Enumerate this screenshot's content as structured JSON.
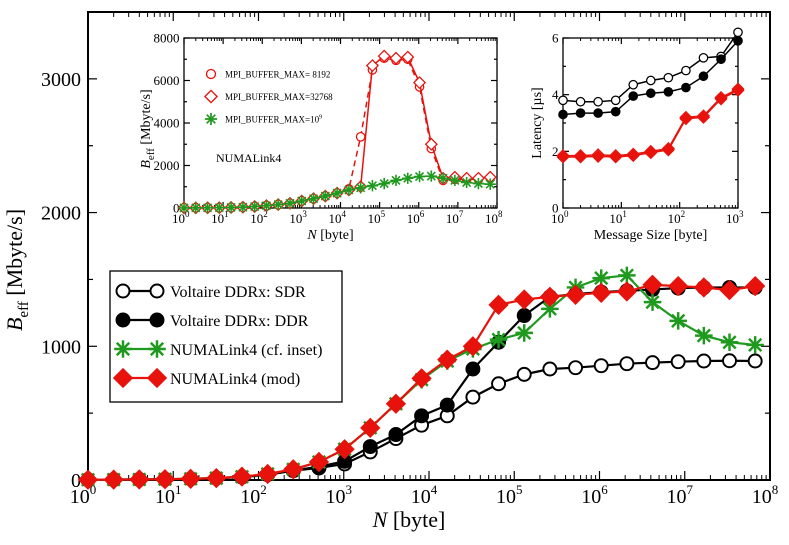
{
  "chart_data": [
    {
      "id": "main",
      "type": "line",
      "xscale": "log",
      "xlim_exp": [
        0,
        8
      ],
      "ylim": [
        0,
        3500
      ],
      "yticks": [
        0,
        1000,
        2000,
        3000
      ],
      "xlabel": "N",
      "xlabel_unit": "[byte]",
      "ylabel": "B",
      "ylabel_sub": "eff",
      "ylabel_unit": "[Mbyte/s]",
      "legend_position": "middle-left",
      "series": [
        {
          "name": "Voltaire DDRx: SDR",
          "color": "#000000",
          "marker": "circle-open",
          "x_exp": [
            0,
            0.301,
            0.602,
            0.903,
            1.204,
            1.505,
            1.806,
            2.107,
            2.408,
            2.709,
            3.01,
            3.311,
            3.612,
            3.913,
            4.214,
            4.515,
            4.816,
            5.117,
            5.418,
            5.719,
            6.02,
            6.321,
            6.622,
            6.923,
            7.224,
            7.525,
            7.826
          ],
          "y": [
            2,
            3,
            4,
            6,
            9,
            14,
            22,
            40,
            70,
            90,
            120,
            210,
            310,
            410,
            480,
            620,
            720,
            790,
            830,
            840,
            855,
            870,
            878,
            885,
            890,
            892,
            890
          ]
        },
        {
          "name": "Voltaire DDRx: DDR",
          "color": "#000000",
          "marker": "circle-filled",
          "x_exp": [
            0,
            0.301,
            0.602,
            0.903,
            1.204,
            1.505,
            1.806,
            2.107,
            2.408,
            2.709,
            3.01,
            3.311,
            3.612,
            3.913,
            4.214,
            4.515,
            4.816,
            5.117,
            5.418,
            5.719,
            6.02,
            6.321,
            6.622,
            6.923,
            7.224,
            7.525,
            7.826
          ],
          "y": [
            2,
            3,
            4,
            6,
            9,
            14,
            22,
            40,
            70,
            100,
            140,
            250,
            340,
            480,
            560,
            830,
            1030,
            1230,
            1370,
            1390,
            1405,
            1415,
            1425,
            1435,
            1440,
            1440,
            1440
          ]
        },
        {
          "name": "NUMALink4 (cf. inset)",
          "color": "#1f9a1f",
          "marker": "asterisk",
          "x_exp": [
            0,
            0.301,
            0.602,
            0.903,
            1.204,
            1.505,
            1.806,
            2.107,
            2.408,
            2.709,
            3.01,
            3.311,
            3.612,
            3.913,
            4.214,
            4.515,
            4.816,
            5.117,
            5.418,
            5.719,
            6.02,
            6.321,
            6.622,
            6.923,
            7.224,
            7.525,
            7.826
          ],
          "y": [
            2,
            3,
            4,
            6,
            9,
            14,
            25,
            45,
            80,
            135,
            230,
            390,
            570,
            750,
            890,
            980,
            1050,
            1100,
            1280,
            1440,
            1510,
            1530,
            1330,
            1190,
            1080,
            1030,
            1010
          ]
        },
        {
          "name": "NUMALink4 (mod)",
          "color": "#e8120c",
          "marker": "diamond-filled",
          "x_exp": [
            0,
            0.301,
            0.602,
            0.903,
            1.204,
            1.505,
            1.806,
            2.107,
            2.408,
            2.709,
            3.01,
            3.311,
            3.612,
            3.913,
            4.214,
            4.515,
            4.816,
            5.117,
            5.418,
            5.719,
            6.02,
            6.321,
            6.622,
            6.923,
            7.224,
            7.525,
            7.826
          ],
          "y": [
            2,
            3,
            4,
            6,
            9,
            14,
            25,
            45,
            80,
            135,
            230,
            390,
            570,
            760,
            900,
            1000,
            1310,
            1350,
            1370,
            1385,
            1400,
            1410,
            1460,
            1450,
            1440,
            1420,
            1450
          ]
        }
      ]
    },
    {
      "id": "inset-left",
      "type": "line",
      "xscale": "log",
      "xlim_exp": [
        0,
        8
      ],
      "ylim": [
        0,
        8000
      ],
      "yticks": [
        0,
        2000,
        4000,
        6000,
        8000
      ],
      "xlabel": "N",
      "xlabel_unit": "[byte]",
      "ylabel": "B",
      "ylabel_sub": "eff",
      "ylabel_unit": "[Mbyte/s]",
      "annotation": "NUMALink4",
      "series": [
        {
          "name": "MPI_BUFFER_MAX= 8192",
          "color": "#e8120c",
          "marker": "circle-open",
          "dash": "dashed",
          "x_exp": [
            0,
            0.301,
            0.602,
            0.903,
            1.204,
            1.505,
            1.806,
            2.107,
            2.408,
            2.709,
            3.01,
            3.311,
            3.612,
            3.913,
            4.214,
            4.515,
            4.816,
            5.117,
            5.418,
            5.719,
            6.02,
            6.321,
            6.622,
            6.923,
            7.224,
            7.525,
            7.826
          ],
          "y": [
            5,
            8,
            10,
            15,
            25,
            40,
            70,
            110,
            160,
            220,
            330,
            440,
            560,
            700,
            900,
            3350,
            6500,
            7050,
            6950,
            7000,
            5700,
            2800,
            1300,
            1350,
            1350,
            1350,
            1400
          ]
        },
        {
          "name": "MPI_BUFFER_MAX=32768",
          "color": "#e8120c",
          "marker": "diamond-open",
          "dash": "solid",
          "x_exp": [
            0,
            0.301,
            0.602,
            0.903,
            1.204,
            1.505,
            1.806,
            2.107,
            2.408,
            2.709,
            3.01,
            3.311,
            3.612,
            3.913,
            4.214,
            4.515,
            4.816,
            5.117,
            5.418,
            5.719,
            6.02,
            6.321,
            6.622,
            6.923,
            7.224,
            7.525,
            7.826
          ],
          "y": [
            5,
            8,
            10,
            15,
            25,
            40,
            70,
            110,
            160,
            220,
            330,
            440,
            560,
            700,
            850,
            1000,
            6700,
            7150,
            7050,
            7100,
            5900,
            3000,
            1400,
            1450,
            1400,
            1400,
            1450
          ]
        },
        {
          "name": "MPI_BUFFER_MAX=10",
          "name_sup": "9",
          "color": "#1f9a1f",
          "marker": "asterisk",
          "dash": "solid",
          "x_exp": [
            0,
            0.301,
            0.602,
            0.903,
            1.204,
            1.505,
            1.806,
            2.107,
            2.408,
            2.709,
            3.01,
            3.311,
            3.612,
            3.913,
            4.214,
            4.515,
            4.816,
            5.117,
            5.418,
            5.719,
            6.02,
            6.321,
            6.622,
            6.923,
            7.224,
            7.525,
            7.826
          ],
          "y": [
            5,
            8,
            10,
            15,
            25,
            40,
            70,
            110,
            160,
            220,
            330,
            440,
            560,
            700,
            850,
            950,
            1050,
            1150,
            1300,
            1400,
            1480,
            1500,
            1400,
            1300,
            1200,
            1150,
            1120
          ]
        }
      ]
    },
    {
      "id": "inset-right",
      "type": "line",
      "xscale": "log",
      "xlim_exp": [
        0,
        3
      ],
      "ylim": [
        0,
        6
      ],
      "yticks": [
        0,
        2,
        4,
        6
      ],
      "xlabel": "Message Size [byte]",
      "ylabel": "Latency [µs]",
      "series": [
        {
          "name": "Voltaire DDRx: SDR",
          "color": "#000000",
          "marker": "circle-open",
          "x_exp": [
            0,
            0.301,
            0.602,
            0.903,
            1.204,
            1.505,
            1.806,
            2.107,
            2.408,
            2.709,
            3.0
          ],
          "y": [
            3.8,
            3.75,
            3.75,
            3.8,
            4.35,
            4.5,
            4.6,
            4.85,
            5.3,
            5.35,
            6.2
          ]
        },
        {
          "name": "Voltaire DDRx: DDR",
          "color": "#000000",
          "marker": "circle-filled",
          "x_exp": [
            0,
            0.301,
            0.602,
            0.903,
            1.204,
            1.505,
            1.806,
            2.107,
            2.408,
            2.709,
            3.0
          ],
          "y": [
            3.3,
            3.35,
            3.35,
            3.4,
            3.95,
            4.05,
            4.1,
            4.25,
            4.65,
            5.25,
            5.9
          ]
        },
        {
          "name": "NUMALink4 (cf. inset)",
          "color": "#e8120c",
          "marker": "diamond-open",
          "x_exp": [
            0,
            0.301,
            0.602,
            0.903,
            1.204,
            1.505,
            1.806,
            2.107,
            2.408,
            2.709,
            3.0
          ],
          "y": [
            1.85,
            1.85,
            1.88,
            1.85,
            1.9,
            2.0,
            2.1,
            3.2,
            3.25,
            3.9,
            4.2
          ]
        },
        {
          "name": "NUMALink4 (mod)",
          "color": "#e8120c",
          "marker": "diamond-filled",
          "x_exp": [
            0,
            0.301,
            0.602,
            0.903,
            1.204,
            1.505,
            1.806,
            2.107,
            2.408,
            2.709,
            3.0
          ],
          "y": [
            1.8,
            1.8,
            1.82,
            1.8,
            1.85,
            1.95,
            2.05,
            3.15,
            3.2,
            3.85,
            4.15
          ]
        }
      ]
    }
  ]
}
